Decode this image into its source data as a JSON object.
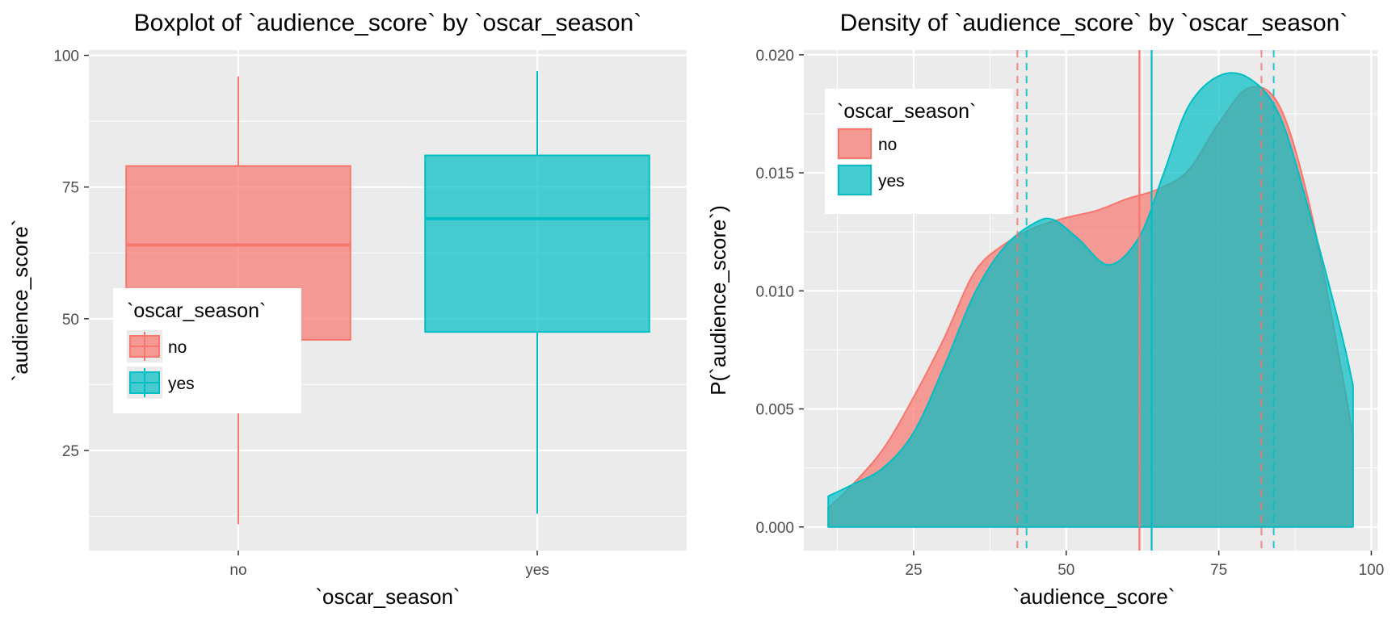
{
  "chart_data": [
    {
      "type": "box",
      "title": "Boxplot of `audience_score` by `oscar_season`",
      "xlabel": "`oscar_season`",
      "ylabel": "`audience_score`",
      "categories": [
        "no",
        "yes"
      ],
      "ylim": [
        6,
        101
      ],
      "yticks": [
        25,
        50,
        75,
        100
      ],
      "ytick_labels": [
        "25",
        "50",
        "75",
        "100"
      ],
      "grid": true,
      "legend": {
        "title": "`oscar_season`",
        "position": "center-left",
        "entries": [
          "no",
          "yes"
        ]
      },
      "boxes": [
        {
          "name": "no",
          "min": 11,
          "q1": 46,
          "median": 64,
          "q3": 79,
          "max": 96,
          "color": "#F8766D"
        },
        {
          "name": "yes",
          "min": 13,
          "q1": 47.5,
          "median": 69,
          "q3": 81,
          "max": 97,
          "color": "#00BFC4"
        }
      ]
    },
    {
      "type": "area",
      "title": "Density of `audience_score` by `oscar_season`",
      "xlabel": "`audience_score`",
      "ylabel": "P(`audience_score`)",
      "xlim": [
        7,
        101
      ],
      "ylim": [
        -0.001,
        0.0202
      ],
      "xticks": [
        25,
        50,
        75,
        100
      ],
      "xtick_labels": [
        "25",
        "50",
        "75",
        "100"
      ],
      "yticks": [
        0,
        0.005,
        0.01,
        0.015,
        0.02
      ],
      "ytick_labels": [
        "0.000",
        "0.005",
        "0.010",
        "0.015",
        "0.020"
      ],
      "grid": true,
      "legend": {
        "title": "`oscar_season`",
        "position": "top-left",
        "entries": [
          "no",
          "yes"
        ]
      },
      "series": [
        {
          "name": "no",
          "color": "#F8766D",
          "mean": 62,
          "quantiles": [
            42,
            82
          ],
          "points": [
            [
              11,
              0.0008
            ],
            [
              15,
              0.0018
            ],
            [
              20,
              0.0033
            ],
            [
              25,
              0.0055
            ],
            [
              30,
              0.008
            ],
            [
              35,
              0.0108
            ],
            [
              40,
              0.012
            ],
            [
              45,
              0.0127
            ],
            [
              50,
              0.0131
            ],
            [
              55,
              0.0134
            ],
            [
              60,
              0.0139
            ],
            [
              65,
              0.0143
            ],
            [
              70,
              0.0151
            ],
            [
              75,
              0.0171
            ],
            [
              80,
              0.0186
            ],
            [
              85,
              0.0178
            ],
            [
              90,
              0.0135
            ],
            [
              95,
              0.0068
            ],
            [
              97,
              0.0038
            ]
          ]
        },
        {
          "name": "yes",
          "color": "#00BFC4",
          "mean": 64,
          "quantiles": [
            43.5,
            84
          ],
          "points": [
            [
              11,
              0.0013
            ],
            [
              15,
              0.0018
            ],
            [
              20,
              0.0025
            ],
            [
              25,
              0.004
            ],
            [
              30,
              0.0068
            ],
            [
              35,
              0.0099
            ],
            [
              40,
              0.0119
            ],
            [
              45,
              0.0129
            ],
            [
              48,
              0.013
            ],
            [
              52,
              0.0122
            ],
            [
              57,
              0.0111
            ],
            [
              62,
              0.0123
            ],
            [
              66,
              0.015
            ],
            [
              70,
              0.0178
            ],
            [
              75,
              0.0191
            ],
            [
              80,
              0.019
            ],
            [
              85,
              0.0174
            ],
            [
              90,
              0.0132
            ],
            [
              95,
              0.0083
            ],
            [
              97,
              0.006
            ]
          ]
        }
      ]
    }
  ]
}
